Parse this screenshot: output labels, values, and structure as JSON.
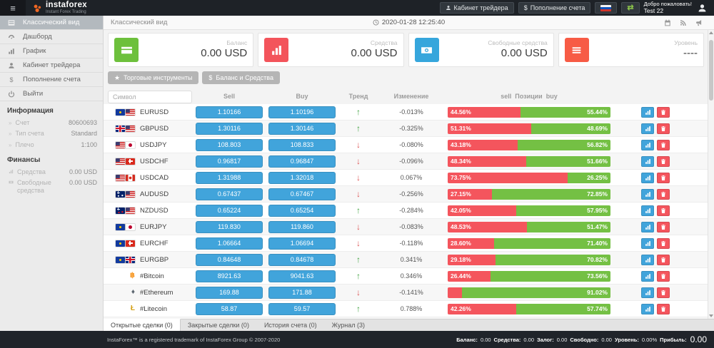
{
  "topbar": {
    "logo_text": "instaforex",
    "logo_tagline": "Instant Forex Trading",
    "trader_cabinet_label": "Кабинет трейдера",
    "deposit_label": "Пополнение счета",
    "welcome_line1": "Добро пожаловать!",
    "welcome_line2": "Test 22"
  },
  "sidebar": {
    "items": [
      {
        "label": "Классический вид",
        "active": true
      },
      {
        "label": "Дашборд"
      },
      {
        "label": "График"
      },
      {
        "label": "Кабинет трейдера"
      },
      {
        "label": "Пополнение счета"
      },
      {
        "label": "Выйти"
      }
    ],
    "info_title": "Информация",
    "info_rows": [
      {
        "label": "Счет",
        "value": "80600693"
      },
      {
        "label": "Тип счета",
        "value": "Standard"
      },
      {
        "label": "Плечо",
        "value": "1:100"
      }
    ],
    "finance_title": "Финансы",
    "finance_rows": [
      {
        "label": "Средства",
        "value": "0.00 USD"
      },
      {
        "label": "Свободные средства",
        "value": "0.00 USD"
      }
    ]
  },
  "main": {
    "title": "Классический вид",
    "timestamp": "2020-01-28 12:25:40",
    "cards": [
      {
        "label": "Баланс",
        "value": "0.00 USD",
        "color": "#6dc03c"
      },
      {
        "label": "Средства",
        "value": "0.00 USD",
        "color": "#f3545b"
      },
      {
        "label": "Свободные средства",
        "value": "0.00 USD",
        "color": "#36a6dc"
      },
      {
        "label": "Уровень",
        "value": "----",
        "color": "#f75b45"
      }
    ],
    "toolbar": [
      {
        "label": "Торговые инструменты"
      },
      {
        "label": "Баланс и Средства"
      }
    ]
  },
  "table": {
    "search_placeholder": "Символ",
    "headers": {
      "sell": "Sell",
      "buy": "Buy",
      "trend": "Тренд",
      "change": "Изменение",
      "pos_left": "sell",
      "pos_mid": "Позиции",
      "pos_right": "buy"
    },
    "rows": [
      {
        "symbol": "EURUSD",
        "flags": [
          "eu",
          "us"
        ],
        "sell": "1.10166",
        "buy": "1.10196",
        "trend": "up",
        "change": "-0.013%",
        "bar": {
          "left_pct": 44.56,
          "left_label": "44.56%",
          "right_label": "55.44%"
        }
      },
      {
        "symbol": "GBPUSD",
        "flags": [
          "gb",
          "us"
        ],
        "sell": "1.30116",
        "buy": "1.30146",
        "trend": "up",
        "change": "-0.325%",
        "bar": {
          "left_pct": 51.31,
          "left_label": "51.31%",
          "right_label": "48.69%"
        }
      },
      {
        "symbol": "USDJPY",
        "flags": [
          "us",
          "jp"
        ],
        "sell": "108.803",
        "buy": "108.833",
        "trend": "down",
        "change": "-0.080%",
        "bar": {
          "left_pct": 43.18,
          "left_label": "43.18%",
          "right_label": "56.82%"
        }
      },
      {
        "symbol": "USDCHF",
        "flags": [
          "us",
          "ch"
        ],
        "sell": "0.96817",
        "buy": "0.96847",
        "trend": "down",
        "change": "-0.096%",
        "bar": {
          "left_pct": 48.34,
          "left_label": "48.34%",
          "right_label": "51.66%"
        }
      },
      {
        "symbol": "USDCAD",
        "flags": [
          "us",
          "ca"
        ],
        "sell": "1.31988",
        "buy": "1.32018",
        "trend": "down",
        "change": "0.067%",
        "bar": {
          "left_pct": 73.75,
          "left_label": "73.75%",
          "right_label": "26.25%"
        }
      },
      {
        "symbol": "AUDUSD",
        "flags": [
          "au",
          "us"
        ],
        "sell": "0.67437",
        "buy": "0.67467",
        "trend": "down",
        "change": "-0.256%",
        "bar": {
          "left_pct": 27.15,
          "left_label": "27.15%",
          "right_label": "72.85%"
        }
      },
      {
        "symbol": "NZDUSD",
        "flags": [
          "nz",
          "us"
        ],
        "sell": "0.65224",
        "buy": "0.65254",
        "trend": "up",
        "change": "-0.284%",
        "bar": {
          "left_pct": 42.05,
          "left_label": "42.05%",
          "right_label": "57.95%"
        }
      },
      {
        "symbol": "EURJPY",
        "flags": [
          "eu",
          "jp"
        ],
        "sell": "119.830",
        "buy": "119.860",
        "trend": "down",
        "change": "-0.083%",
        "bar": {
          "left_pct": 48.53,
          "left_label": "48.53%",
          "right_label": "51.47%"
        }
      },
      {
        "symbol": "EURCHF",
        "flags": [
          "eu",
          "ch"
        ],
        "sell": "1.06664",
        "buy": "1.06694",
        "trend": "down",
        "change": "-0.118%",
        "bar": {
          "left_pct": 28.6,
          "left_label": "28.60%",
          "right_label": "71.40%"
        }
      },
      {
        "symbol": "EURGBP",
        "flags": [
          "eu",
          "gb"
        ],
        "sell": "0.84648",
        "buy": "0.84678",
        "trend": "up",
        "change": "0.341%",
        "bar": {
          "left_pct": 29.18,
          "left_label": "29.18%",
          "right_label": "70.82%"
        }
      },
      {
        "symbol": "#Bitcoin",
        "icon_char": "฿",
        "icon_color": "#f7931a",
        "sell": "8921.63",
        "buy": "9041.63",
        "trend": "up",
        "change": "0.346%",
        "bar": {
          "left_pct": 26.44,
          "left_label": "26.44%",
          "right_label": "73.56%"
        }
      },
      {
        "symbol": "#Ethereum",
        "icon_char": "♦",
        "icon_color": "#5c6670",
        "sell": "169.88",
        "buy": "171.88",
        "trend": "down",
        "change": "-0.141%",
        "bar": {
          "left_pct": 8.98,
          "left_label": "",
          "right_label": "91.02%"
        }
      },
      {
        "symbol": "#Litecoin",
        "icon_char": "Ł",
        "icon_color": "#d4a017",
        "sell": "58.87",
        "buy": "59.57",
        "trend": "up",
        "change": "0.788%",
        "bar": {
          "left_pct": 42.26,
          "left_label": "42.26%",
          "right_label": "57.74%"
        }
      },
      {
        "symbol": "",
        "flags": [],
        "sell": "",
        "buy": "",
        "trend": "down",
        "change": "",
        "bar": {
          "left_pct": 3.5,
          "left_label": "",
          "right_label": ""
        },
        "partial": true
      }
    ]
  },
  "tabs": [
    {
      "label": "Открытые сделки (0)",
      "active": true
    },
    {
      "label": "Закрытые сделки (0)"
    },
    {
      "label": "История счета (0)"
    },
    {
      "label": "Журнал (3)"
    }
  ],
  "footer": {
    "copyright": "InstaForex™ is a registered trademark of InstaForex Group © 2007-2020",
    "stats": [
      {
        "label": "Баланс:",
        "value": "0.00"
      },
      {
        "label": "Средства:",
        "value": "0.00"
      },
      {
        "label": "Залог:",
        "value": "0.00"
      },
      {
        "label": "Свободно:",
        "value": "0.00"
      },
      {
        "label": "Уровень:",
        "value": "0.00%"
      },
      {
        "label": "Прибыль:",
        "value": "0.00",
        "big": true
      }
    ]
  },
  "colors": {
    "buy_sell_blue": "#41a4db",
    "bar_red": "#f4555d",
    "bar_green": "#74c044",
    "trend_up": "#3fa13f",
    "trend_down": "#dd5353"
  }
}
